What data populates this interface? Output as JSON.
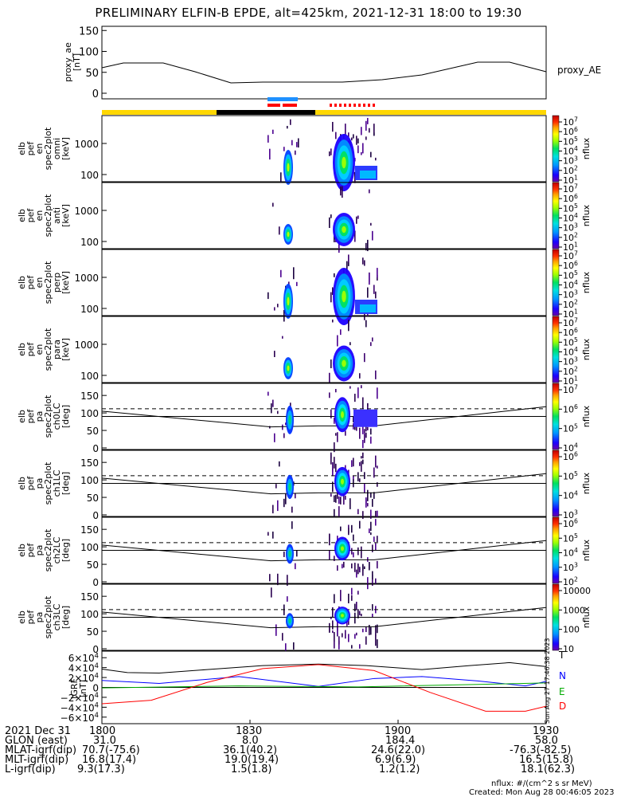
{
  "title": "PRELIMINARY ELFIN-B EPDE, alt=425km, 2021-12-31 18:00 to 19:30",
  "colors": {
    "state_bar_yellow": "#ffd700",
    "state_bar_black": "#000000",
    "science_blue": "#1e90ff",
    "science_red": "#ff0000",
    "b_total": "#000000",
    "b_n": "#0000ff",
    "b_e": "#00aa00",
    "b_d": "#ff0000"
  },
  "panels": {
    "proxy_ae": {
      "ylabel": "proxy_ae\n[nT]",
      "yticks": [
        "150",
        "100",
        "50",
        "0"
      ],
      "series_label": "proxy_AE"
    },
    "omni": {
      "ylabel": "elb\npef\nen\nspec2plot\nomni\n[keV]",
      "yticks": [
        "1000",
        "100"
      ],
      "cticks": [
        "10^7",
        "10^6",
        "10^5",
        "10^4",
        "10^3",
        "10^2",
        "10^1"
      ],
      "clabel": "nflux"
    },
    "anti": {
      "ylabel": "elb\npef\nen\nspec2plot\nanti\n[keV]",
      "yticks": [
        "1000",
        "100"
      ],
      "cticks": [
        "10^7",
        "10^6",
        "10^5",
        "10^4",
        "10^3",
        "10^2",
        "10^1"
      ],
      "clabel": "nflux"
    },
    "perp": {
      "ylabel": "elb\npef\nen\nspec2plot\nperp\n[keV]",
      "yticks": [
        "1000",
        "100"
      ],
      "cticks": [
        "10^7",
        "10^6",
        "10^5",
        "10^4",
        "10^3",
        "10^2",
        "10^1"
      ],
      "clabel": "nflux"
    },
    "para": {
      "ylabel": "elb\npef\nen\nspec2plot\npara\n[keV]",
      "yticks": [
        "1000",
        "100"
      ],
      "cticks": [
        "10^7",
        "10^6",
        "10^5",
        "10^4",
        "10^3",
        "10^2",
        "10^1"
      ],
      "clabel": "nflux"
    },
    "ch0": {
      "ylabel": "elb\npef\npa\nspec2plot\nch0LC\n[deg]",
      "yticks": [
        "150",
        "100",
        "50",
        "0"
      ],
      "cticks": [
        "10^7",
        "10^6",
        "10^5",
        "10^4"
      ],
      "clabel": "nflux"
    },
    "ch1": {
      "ylabel": "elb\npef\npa\nspec2plot\nch1LC\n[deg]",
      "yticks": [
        "150",
        "100",
        "50",
        "0"
      ],
      "cticks": [
        "10^6",
        "10^5",
        "10^4",
        "10^3"
      ],
      "clabel": "nflux"
    },
    "ch2": {
      "ylabel": "elb\npef\npa\nspec2plot\nch2LC\n[deg]",
      "yticks": [
        "150",
        "100",
        "50",
        "0"
      ],
      "cticks": [
        "10^6",
        "10^5",
        "10^4",
        "10^3",
        "10^2"
      ],
      "clabel": "nflux"
    },
    "ch3": {
      "ylabel": "elb\npef\npa\nspec2plot\nch3LC\n[deg]",
      "yticks": [
        "150",
        "100",
        "50",
        "0"
      ],
      "cticks": [
        "10000",
        "1000",
        "100",
        "10"
      ],
      "clabel": "nflux"
    },
    "igrf": {
      "ylabel": "IGRF\n[nT]",
      "yticks": [
        "6×10^4",
        "4×10^4",
        "2×10^4",
        "0",
        "−2×10^4",
        "−4×10^4",
        "−6×10^4"
      ],
      "labels": [
        "T",
        "N",
        "E",
        "D"
      ]
    }
  },
  "stamp": "Sun Aug 27 17:46:38 2023",
  "footer": {
    "rows": [
      {
        "label": "2021 Dec 31",
        "values": [
          "1800",
          "1830",
          "1900",
          "1930"
        ]
      },
      {
        "label": "GLON (east)",
        "values": [
          "31.0",
          "8.0",
          "184.4",
          "58.0"
        ]
      },
      {
        "label": "MLAT-igrf(dip)",
        "values": [
          "70.7(-75.6)",
          "36.1(40.2)",
          "24.6(22.0)",
          "-76.3(-82.5)"
        ]
      },
      {
        "label": "MLT-igrf(dip)",
        "values": [
          "16.8(17.4)",
          "19.0(19.4)",
          "6.9(6.9)",
          "16.5(15.8)"
        ]
      },
      {
        "label": "L-igrf(dip)",
        "values": [
          "9.3(17.3)",
          "1.5(1.8)",
          "1.2(1.2)",
          "18.1(62.3)"
        ]
      }
    ],
    "units": "nflux: #/(cm^2 s sr MeV)",
    "created": "Created: Mon Aug 28 00:46:05 2023"
  },
  "chart_data": [
    {
      "type": "line",
      "title": "proxy_ae",
      "x": [
        "1800",
        "1810",
        "1820",
        "1830",
        "1840",
        "1850",
        "1900",
        "1910",
        "1920",
        "1930"
      ],
      "series": [
        {
          "name": "proxy_AE",
          "values": [
            58,
            72,
            55,
            25,
            25,
            25,
            28,
            45,
            75,
            50
          ]
        }
      ],
      "ylim": [
        0,
        160
      ]
    },
    {
      "type": "heatmap",
      "title": "omni",
      "note": "energy spectrogram, keV",
      "ylim": [
        60,
        6000
      ]
    },
    {
      "type": "heatmap",
      "title": "anti",
      "ylim": [
        60,
        6000
      ]
    },
    {
      "type": "heatmap",
      "title": "perp",
      "ylim": [
        60,
        6000
      ]
    },
    {
      "type": "heatmap",
      "title": "para",
      "ylim": [
        60,
        6000
      ]
    },
    {
      "type": "heatmap",
      "title": "ch0LC",
      "ylim": [
        0,
        180
      ]
    },
    {
      "type": "heatmap",
      "title": "ch1LC",
      "ylim": [
        0,
        180
      ]
    },
    {
      "type": "heatmap",
      "title": "ch2LC",
      "ylim": [
        0,
        180
      ]
    },
    {
      "type": "heatmap",
      "title": "ch3LC",
      "ylim": [
        0,
        180
      ]
    },
    {
      "type": "line",
      "title": "IGRF",
      "x": [
        "1800",
        "1830",
        "1900",
        "1930"
      ],
      "series": [
        {
          "name": "T",
          "values": [
            40000,
            45000,
            45000,
            60000
          ]
        },
        {
          "name": "N",
          "values": [
            15000,
            28000,
            5000,
            5000
          ]
        },
        {
          "name": "E",
          "values": [
            0,
            2000,
            0,
            8000
          ]
        },
        {
          "name": "D",
          "values": [
            -30000,
            40000,
            38000,
            -55000
          ]
        }
      ],
      "ylim": [
        -70000,
        70000
      ]
    }
  ]
}
